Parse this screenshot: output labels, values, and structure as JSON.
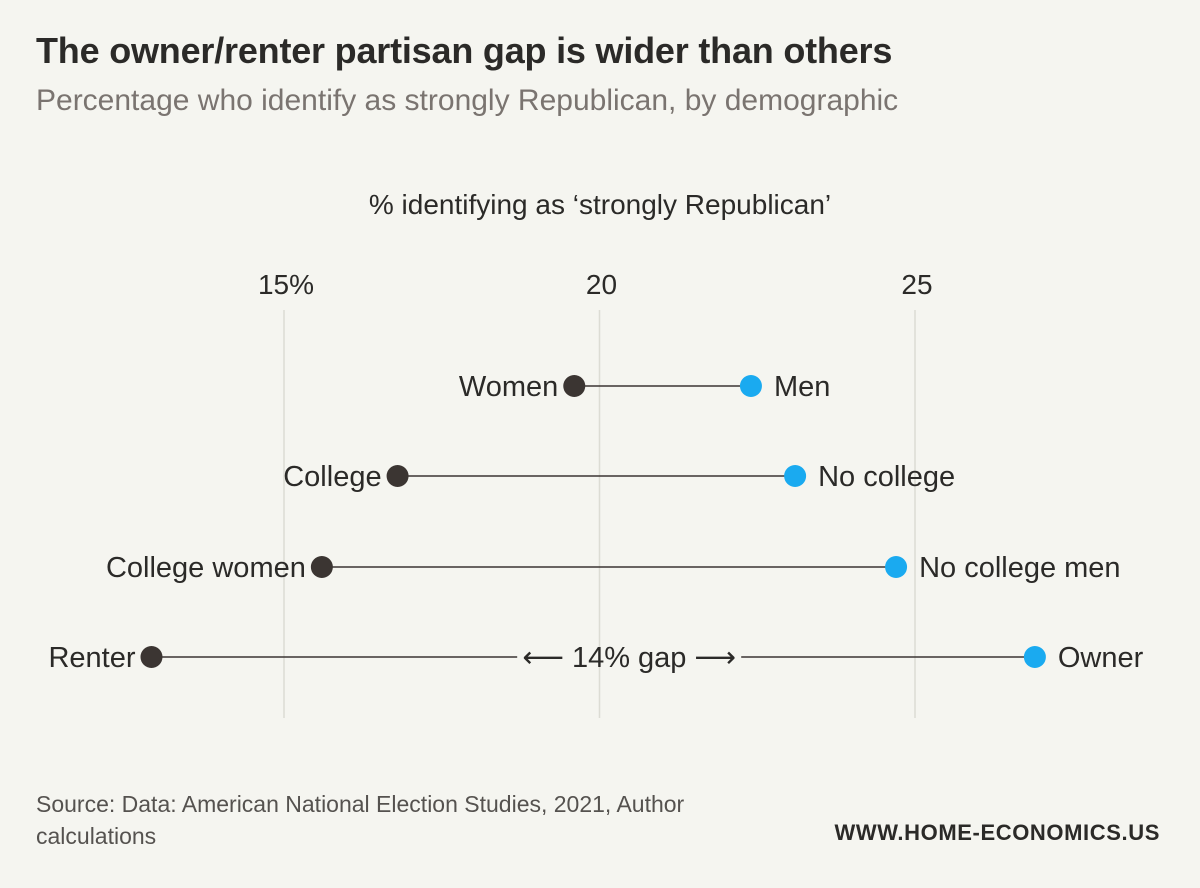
{
  "header": {
    "title": "The owner/renter partisan gap is wider than others",
    "subtitle": "Percentage who identify as strongly Republican, by demographic"
  },
  "chart_data": {
    "type": "dumbbell",
    "title": "The owner/renter partisan gap is wider than others",
    "subtitle": "Percentage who identify as strongly Republican, by demographic",
    "xlabel": "% identifying as ‘strongly Republican’",
    "xlim": [
      12.5,
      27.5
    ],
    "x_ticks": [
      15,
      20,
      25
    ],
    "x_tick_labels": [
      "15%",
      "20",
      "25"
    ],
    "grid": "vertical",
    "colors": {
      "low": "#3b3532",
      "high": "#1aaaf0",
      "connector": "#3b3532",
      "grid": "#dcdcd4"
    },
    "rows": [
      {
        "low_label": "Women",
        "low_value": 19.6,
        "high_label": "Men",
        "high_value": 22.4
      },
      {
        "low_label": "College",
        "low_value": 16.8,
        "high_label": "No college",
        "high_value": 23.1
      },
      {
        "low_label": "College women",
        "low_value": 15.6,
        "high_label": "No college men",
        "high_value": 24.7
      },
      {
        "low_label": "Renter",
        "low_value": 12.9,
        "high_label": "Owner",
        "high_value": 26.9
      }
    ],
    "annotation": {
      "text": "⟵ 14% gap ⟶",
      "row": 3
    }
  },
  "footer": {
    "source": "Source: Data: American National Election Studies, 2021, Author calculations",
    "website": "WWW.HOME-ECONOMICS.US"
  }
}
